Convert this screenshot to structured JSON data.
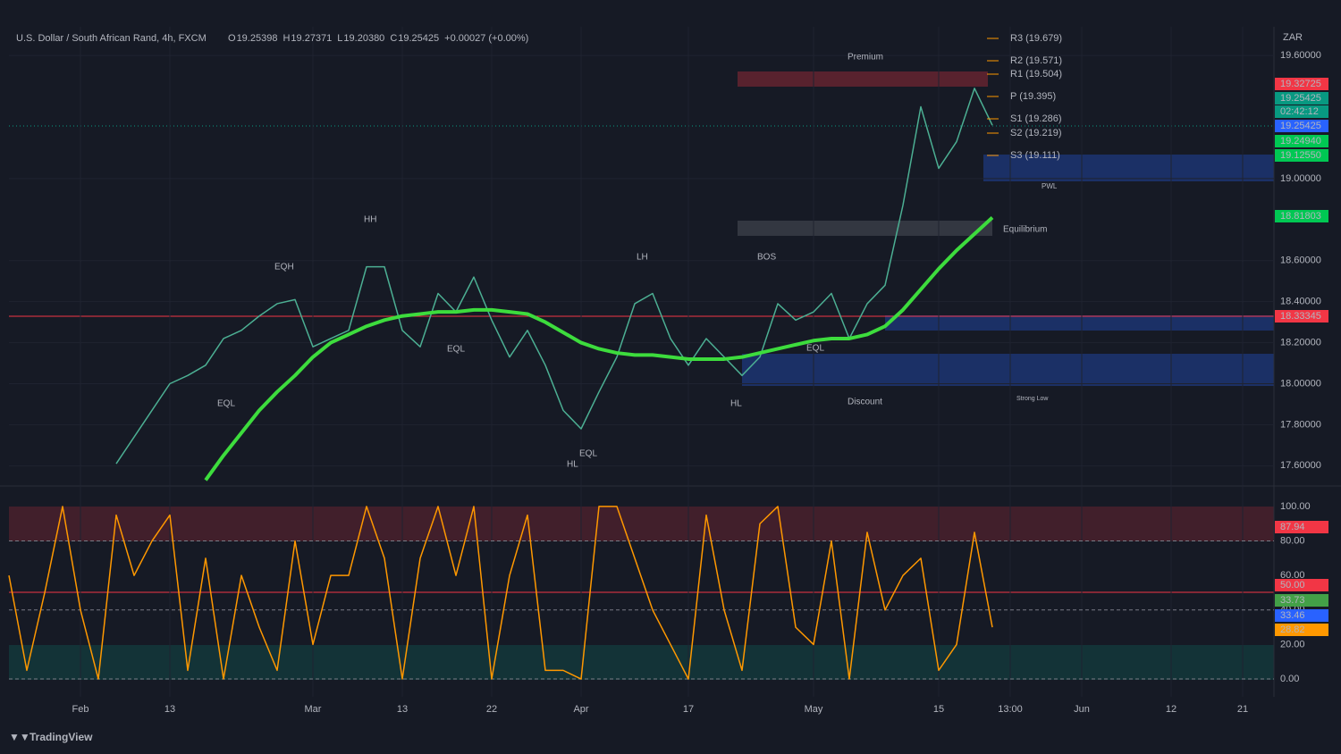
{
  "header": {
    "symbol": "U.S. Dollar / South African Rand, 4h, FXCM",
    "ohlc": [
      "O",
      "19.25398",
      "H",
      "19.27371",
      "L",
      "19.20380",
      "C",
      "19.25425",
      "+0.00027 (+0.00%)"
    ]
  },
  "currency": "ZAR",
  "pivots": [
    "R3 (19.679)",
    "R2 (19.571)",
    "R1 (19.504)",
    "P (19.395)",
    "S1 (19.286)",
    "S2 (19.219)",
    "S3 (19.111)"
  ],
  "price_labels": [
    {
      "text": "19.32725",
      "color": "#f23645"
    },
    {
      "text": "19.25425",
      "color": "#089981"
    },
    {
      "text": "02:42:12",
      "color": "#089981"
    },
    {
      "text": "19.25425",
      "color": "#2962ff"
    },
    {
      "text": "19.24940",
      "color": "#00c853"
    },
    {
      "text": "19.12550",
      "color": "#00c853"
    },
    {
      "text": "18.81803",
      "color": "#00c853"
    },
    {
      "text": "18.33345",
      "color": "#f23645"
    }
  ],
  "osc_labels": [
    {
      "text": "87.94",
      "color": "#f23645"
    },
    {
      "text": "50.00",
      "color": "#f23645"
    },
    {
      "text": "33.73",
      "color": "#43a047"
    },
    {
      "text": "33.46",
      "color": "#2962ff"
    },
    {
      "text": "28.82",
      "color": "#ff9800"
    }
  ],
  "annotations": [
    "Premium",
    "Equilibrium",
    "Discount",
    "PWL",
    "Strong Low",
    "HH",
    "EQH",
    "LH",
    "BOS",
    "EQL",
    "EQL",
    "EQL",
    "HL",
    "HL",
    "EQL"
  ],
  "footer": "TradingView",
  "chart_data": [
    {
      "type": "line",
      "categories": [
        null,
        null,
        null,
        null,
        "Feb",
        null,
        null,
        null,
        null,
        "13",
        null,
        null,
        null,
        null,
        null,
        null,
        null,
        "Mar",
        null,
        null,
        null,
        null,
        "13",
        null,
        null,
        null,
        null,
        "22",
        null,
        null,
        null,
        null,
        "Apr",
        null,
        null,
        null,
        null,
        null,
        "17",
        null,
        null,
        null,
        null,
        null,
        null,
        "May",
        null,
        null,
        null,
        null,
        null,
        null,
        "15",
        null,
        null,
        null,
        "13:00",
        null,
        null,
        null,
        "Jun",
        null,
        null,
        null,
        null,
        "12",
        null,
        null,
        null,
        "21"
      ],
      "series": [
        {
          "color": "#4caf93",
          "values": [
            null,
            null,
            null,
            null,
            null,
            null,
            17.61,
            17.74,
            17.87,
            18.0,
            18.04,
            18.09,
            18.22,
            18.26,
            18.33,
            18.39,
            18.41,
            18.18,
            18.22,
            18.26,
            18.57,
            18.57,
            18.26,
            18.18,
            18.44,
            18.35,
            18.52,
            18.31,
            18.13,
            18.26,
            18.09,
            17.87,
            17.78,
            17.96,
            18.13,
            18.39,
            18.44,
            18.22,
            18.09,
            18.22,
            18.13,
            18.04,
            18.13,
            18.39,
            18.31,
            18.35,
            18.44,
            18.22,
            18.39,
            18.48,
            18.87,
            19.35,
            19.05,
            19.18,
            19.44,
            19.26,
            null,
            null,
            null,
            null,
            null,
            null,
            null,
            null,
            null,
            null,
            null,
            null,
            null,
            null
          ]
        },
        {
          "color": "#3ddc3d",
          "values": [
            null,
            null,
            null,
            null,
            null,
            null,
            null,
            null,
            null,
            null,
            null,
            17.53,
            17.65,
            17.76,
            17.87,
            17.96,
            18.04,
            18.13,
            18.2,
            18.24,
            18.28,
            18.31,
            18.33,
            18.34,
            18.35,
            18.35,
            18.36,
            18.36,
            18.35,
            18.34,
            18.3,
            18.25,
            18.2,
            18.17,
            18.15,
            18.14,
            18.14,
            18.13,
            18.12,
            18.12,
            18.12,
            18.13,
            18.15,
            18.17,
            18.19,
            18.21,
            18.22,
            18.22,
            18.24,
            18.28,
            18.36,
            18.46,
            18.56,
            18.65,
            18.73,
            18.81,
            null,
            null,
            null,
            null,
            null,
            null,
            null,
            null,
            null,
            null,
            null,
            null,
            null,
            null
          ]
        }
      ],
      "ylim": [
        17.51,
        19.74
      ],
      "yticks": [
        {
          "value": 17.6,
          "label": "17.60000"
        },
        {
          "value": 17.8,
          "label": "17.80000"
        },
        {
          "value": 18.0,
          "label": "18.00000"
        },
        {
          "value": 18.2,
          "label": "18.20000"
        },
        {
          "value": 18.4,
          "label": "18.40000"
        },
        {
          "value": 18.6,
          "label": "18.60000"
        },
        {
          "value": 19.0,
          "label": "19.00000"
        },
        {
          "value": 19.6,
          "label": "19.60000"
        }
      ]
    },
    {
      "type": "line",
      "series": [
        {
          "color": "#ff9800",
          "values": [
            60,
            5,
            50,
            100,
            40,
            0,
            95,
            60,
            80,
            95,
            5,
            70,
            0,
            60,
            30,
            5,
            80,
            20,
            60,
            60,
            100,
            70,
            0,
            70,
            100,
            60,
            100,
            0,
            60,
            95,
            5,
            5,
            0,
            100,
            100,
            70,
            40,
            20,
            0,
            95,
            40,
            5,
            90,
            100,
            30,
            20,
            80,
            0,
            85,
            40,
            60,
            70,
            5,
            20,
            85,
            30
          ]
        }
      ],
      "ylim": [
        -9.3,
        109.8
      ],
      "yticks": [
        {
          "value": 0,
          "label": "0.00"
        },
        {
          "value": 20,
          "label": "20.00"
        },
        {
          "value": 40,
          "label": "40.00"
        },
        {
          "value": 60,
          "label": "60.00"
        },
        {
          "value": 80,
          "label": "80.00"
        },
        {
          "value": 100,
          "label": "100.00"
        }
      ]
    }
  ]
}
